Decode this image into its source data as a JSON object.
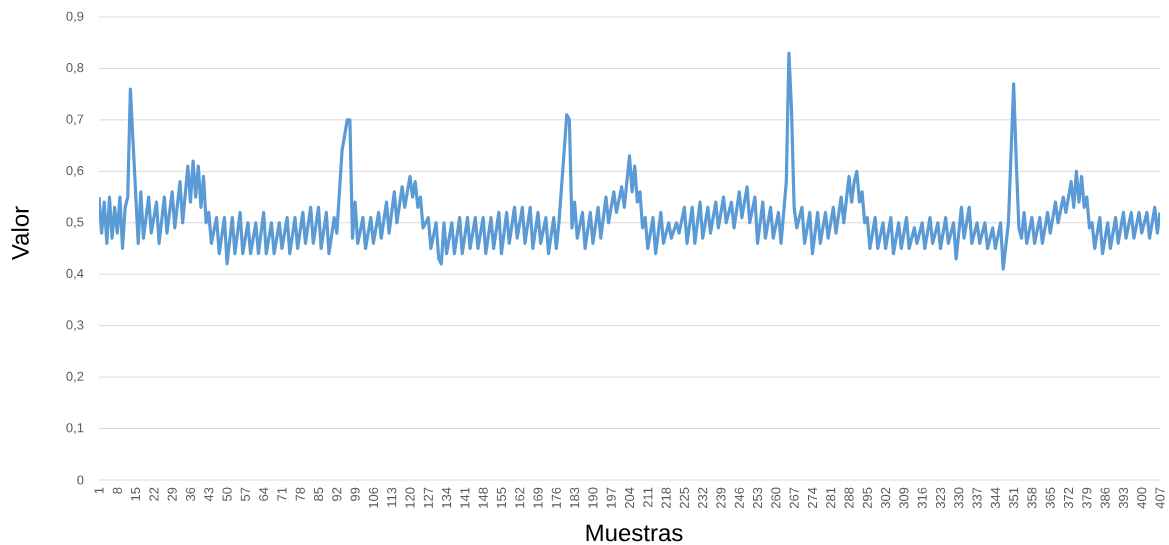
{
  "chart_data": {
    "type": "line",
    "xlabel": "Muestras",
    "ylabel": "Valor",
    "x": [
      1,
      2,
      3,
      4,
      5,
      6,
      7,
      8,
      9,
      10,
      11,
      12,
      13,
      14,
      16,
      17,
      18,
      20,
      21,
      23,
      24,
      26,
      27,
      29,
      30,
      32,
      33,
      35,
      36,
      37,
      38,
      39,
      40,
      41,
      42,
      43,
      44,
      46,
      47,
      49,
      50,
      52,
      53,
      55,
      56,
      58,
      59,
      61,
      62,
      64,
      65,
      67,
      68,
      70,
      71,
      73,
      74,
      76,
      77,
      79,
      80,
      82,
      83,
      85,
      86,
      88,
      89,
      91,
      92,
      94,
      96,
      97,
      98,
      99,
      100,
      102,
      103,
      105,
      106,
      108,
      109,
      111,
      112,
      114,
      115,
      117,
      118,
      120,
      121,
      122,
      123,
      124,
      125,
      127,
      128,
      130,
      131,
      132,
      133,
      134,
      136,
      137,
      139,
      140,
      142,
      143,
      145,
      146,
      148,
      149,
      151,
      152,
      154,
      155,
      157,
      158,
      160,
      161,
      163,
      164,
      166,
      167,
      169,
      170,
      172,
      173,
      175,
      176,
      177,
      179,
      180,
      181,
      182,
      183,
      184,
      186,
      187,
      189,
      190,
      192,
      193,
      195,
      196,
      198,
      199,
      201,
      202,
      204,
      205,
      206,
      207,
      208,
      209,
      210,
      211,
      213,
      214,
      216,
      217,
      219,
      220,
      222,
      223,
      225,
      226,
      228,
      229,
      231,
      232,
      234,
      235,
      237,
      238,
      240,
      241,
      243,
      244,
      246,
      247,
      249,
      250,
      252,
      253,
      255,
      256,
      258,
      259,
      261,
      262,
      264,
      265,
      266,
      267,
      268,
      270,
      271,
      273,
      274,
      276,
      277,
      279,
      280,
      282,
      283,
      285,
      286,
      288,
      289,
      290,
      291,
      292,
      293,
      294,
      295,
      296,
      298,
      299,
      301,
      302,
      304,
      305,
      307,
      308,
      310,
      311,
      313,
      314,
      316,
      317,
      319,
      320,
      322,
      323,
      325,
      326,
      328,
      329,
      331,
      332,
      334,
      335,
      337,
      338,
      340,
      341,
      343,
      344,
      346,
      347,
      349,
      351,
      352,
      353,
      354,
      355,
      356,
      358,
      359,
      361,
      362,
      364,
      365,
      367,
      368,
      370,
      371,
      373,
      374,
      375,
      376,
      377,
      378,
      379,
      380,
      381,
      382,
      384,
      385,
      387,
      388,
      390,
      391,
      393,
      394,
      396,
      397,
      399,
      400,
      402,
      403,
      405,
      406,
      407
    ],
    "series": [
      {
        "color": "#5b9bd5",
        "values": [
          0.55,
          0.48,
          0.54,
          0.46,
          0.55,
          0.47,
          0.53,
          0.48,
          0.55,
          0.45,
          0.53,
          0.55,
          0.76,
          0.66,
          0.46,
          0.56,
          0.47,
          0.55,
          0.48,
          0.54,
          0.46,
          0.55,
          0.48,
          0.56,
          0.49,
          0.58,
          0.5,
          0.61,
          0.54,
          0.62,
          0.55,
          0.61,
          0.53,
          0.59,
          0.5,
          0.52,
          0.46,
          0.51,
          0.44,
          0.51,
          0.42,
          0.51,
          0.44,
          0.52,
          0.44,
          0.5,
          0.44,
          0.5,
          0.44,
          0.52,
          0.44,
          0.5,
          0.44,
          0.5,
          0.45,
          0.51,
          0.44,
          0.51,
          0.45,
          0.52,
          0.46,
          0.53,
          0.46,
          0.53,
          0.45,
          0.52,
          0.44,
          0.51,
          0.48,
          0.64,
          0.7,
          0.7,
          0.47,
          0.54,
          0.46,
          0.51,
          0.45,
          0.51,
          0.46,
          0.52,
          0.47,
          0.54,
          0.48,
          0.56,
          0.5,
          0.57,
          0.53,
          0.59,
          0.55,
          0.58,
          0.53,
          0.55,
          0.49,
          0.51,
          0.45,
          0.5,
          0.43,
          0.42,
          0.5,
          0.44,
          0.5,
          0.44,
          0.51,
          0.44,
          0.51,
          0.45,
          0.51,
          0.45,
          0.51,
          0.44,
          0.51,
          0.45,
          0.52,
          0.44,
          0.52,
          0.46,
          0.53,
          0.47,
          0.53,
          0.46,
          0.53,
          0.45,
          0.52,
          0.46,
          0.51,
          0.44,
          0.51,
          0.45,
          0.5,
          0.64,
          0.71,
          0.7,
          0.49,
          0.54,
          0.47,
          0.52,
          0.45,
          0.52,
          0.46,
          0.53,
          0.47,
          0.55,
          0.5,
          0.56,
          0.52,
          0.57,
          0.53,
          0.63,
          0.56,
          0.61,
          0.54,
          0.56,
          0.49,
          0.51,
          0.45,
          0.51,
          0.44,
          0.52,
          0.46,
          0.5,
          0.47,
          0.5,
          0.48,
          0.53,
          0.46,
          0.53,
          0.46,
          0.54,
          0.47,
          0.53,
          0.48,
          0.54,
          0.49,
          0.55,
          0.5,
          0.54,
          0.49,
          0.56,
          0.51,
          0.57,
          0.5,
          0.55,
          0.46,
          0.54,
          0.47,
          0.53,
          0.47,
          0.52,
          0.46,
          0.58,
          0.83,
          0.72,
          0.53,
          0.49,
          0.53,
          0.46,
          0.52,
          0.44,
          0.52,
          0.46,
          0.52,
          0.47,
          0.53,
          0.48,
          0.55,
          0.5,
          0.59,
          0.54,
          0.58,
          0.6,
          0.54,
          0.56,
          0.5,
          0.51,
          0.45,
          0.51,
          0.45,
          0.5,
          0.45,
          0.51,
          0.44,
          0.5,
          0.45,
          0.51,
          0.45,
          0.49,
          0.46,
          0.5,
          0.45,
          0.51,
          0.46,
          0.5,
          0.45,
          0.51,
          0.46,
          0.5,
          0.43,
          0.53,
          0.47,
          0.53,
          0.46,
          0.5,
          0.46,
          0.5,
          0.45,
          0.49,
          0.45,
          0.5,
          0.41,
          0.5,
          0.77,
          0.62,
          0.49,
          0.47,
          0.52,
          0.46,
          0.51,
          0.46,
          0.51,
          0.46,
          0.52,
          0.48,
          0.54,
          0.5,
          0.55,
          0.52,
          0.58,
          0.53,
          0.6,
          0.54,
          0.59,
          0.53,
          0.55,
          0.49,
          0.5,
          0.45,
          0.51,
          0.44,
          0.5,
          0.45,
          0.51,
          0.46,
          0.52,
          0.47,
          0.52,
          0.47,
          0.52,
          0.48,
          0.52,
          0.47,
          0.53,
          0.48,
          0.52
        ]
      }
    ],
    "xlim": [
      1,
      407
    ],
    "xticks": [
      1,
      8,
      15,
      22,
      29,
      36,
      43,
      50,
      57,
      64,
      71,
      78,
      85,
      92,
      99,
      106,
      113,
      120,
      127,
      134,
      141,
      148,
      155,
      162,
      169,
      176,
      183,
      190,
      197,
      204,
      211,
      218,
      225,
      232,
      239,
      246,
      253,
      260,
      267,
      274,
      281,
      288,
      295,
      302,
      309,
      316,
      323,
      330,
      337,
      344,
      351,
      358,
      365,
      372,
      379,
      386,
      393,
      400,
      407
    ],
    "ylim": [
      0,
      0.9
    ],
    "yticks": [
      0,
      {
        "value": 0.1,
        "label": "0,1"
      },
      {
        "value": 0.2,
        "label": "0,2"
      },
      {
        "value": 0.3,
        "label": "0,3"
      },
      {
        "value": 0.4,
        "label": "0,4"
      },
      {
        "value": 0.5,
        "label": "0,5"
      },
      {
        "value": 0.6,
        "label": "0,6"
      },
      {
        "value": 0.7,
        "label": "0,7"
      },
      {
        "value": 0.8,
        "label": "0,8"
      },
      {
        "value": 0.9,
        "label": "0,9"
      }
    ],
    "grid": "y",
    "marker": "none",
    "line_style": "solid"
  }
}
